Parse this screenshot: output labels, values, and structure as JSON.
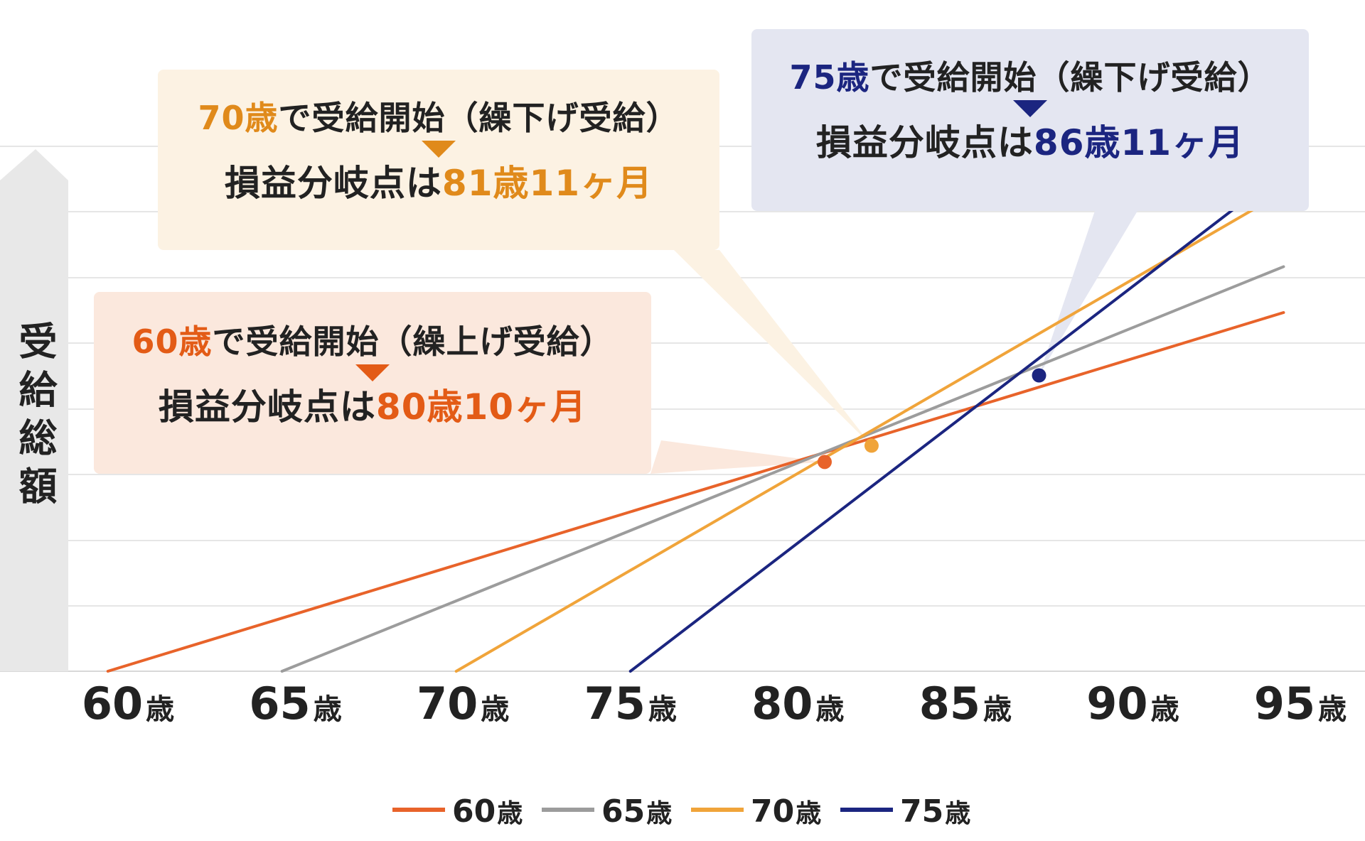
{
  "chart_data": {
    "type": "line",
    "xlabel": "",
    "ylabel": "受給総額",
    "x_ticks": [
      {
        "value": 60,
        "num": "60",
        "unit": "歳"
      },
      {
        "value": 65,
        "num": "65",
        "unit": "歳"
      },
      {
        "value": 70,
        "num": "70",
        "unit": "歳"
      },
      {
        "value": 75,
        "num": "75",
        "unit": "歳"
      },
      {
        "value": 80,
        "num": "80",
        "unit": "歳"
      },
      {
        "value": 85,
        "num": "85",
        "unit": "歳"
      },
      {
        "value": 90,
        "num": "90",
        "unit": "歳"
      },
      {
        "value": 95,
        "num": "95",
        "unit": "歳"
      }
    ],
    "xlim": [
      60,
      95
    ],
    "ylim": [
      0,
      800
    ],
    "grid": true,
    "legend_position": "bottom",
    "series": [
      {
        "name": "60歳",
        "num": "60",
        "unit": "歳",
        "color": "#e8632a",
        "points": [
          [
            59.4,
            0
          ],
          [
            94.5,
            485
          ]
        ]
      },
      {
        "name": "65歳",
        "num": "65",
        "unit": "歳",
        "color": "#9c9c9c",
        "points": [
          [
            64.6,
            0
          ],
          [
            94.5,
            547
          ]
        ]
      },
      {
        "name": "70歳",
        "num": "70",
        "unit": "歳",
        "color": "#f0a43a",
        "points": [
          [
            69.8,
            0
          ],
          [
            94.5,
            648
          ]
        ]
      },
      {
        "name": "75歳",
        "num": "75",
        "unit": "歳",
        "color": "#1b2580",
        "points": [
          [
            75.0,
            0
          ],
          [
            94.6,
            680
          ]
        ]
      }
    ],
    "break_even_markers": [
      {
        "series": "60歳",
        "x": 80.8,
        "y": 283,
        "color": "#e8632a"
      },
      {
        "series": "70歳",
        "x": 82.2,
        "y": 305,
        "color": "#f0a43a"
      },
      {
        "series": "75歳",
        "x": 87.2,
        "y": 400,
        "color": "#1b2580"
      }
    ],
    "annotations": [
      {
        "id": "c70",
        "line1_highlight": "70歳",
        "line1_rest": "で受給開始（繰下げ受給）",
        "line2_prefix": "損益分岐点は",
        "line2_highlight": "81歳11ヶ月",
        "color": "#e08a1b",
        "bg": "#fcf2e3"
      },
      {
        "id": "c75",
        "line1_highlight": "75歳",
        "line1_rest": "で受給開始（繰下げ受給）",
        "line2_prefix": "損益分岐点は",
        "line2_highlight": "86歳11ヶ月",
        "color": "#1b2580",
        "bg": "#e4e6f1"
      },
      {
        "id": "c60",
        "line1_highlight": "60歳",
        "line1_rest": "で受給開始（繰上げ受給）",
        "line2_prefix": "損益分岐点は",
        "line2_highlight": "80歳10ヶ月",
        "color": "#e35b16",
        "bg": "#fbe8dd"
      }
    ]
  }
}
